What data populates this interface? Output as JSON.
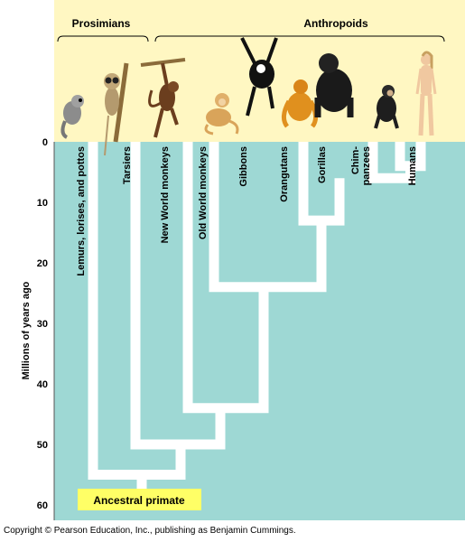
{
  "groups": {
    "prosimians": "Prosimians",
    "anthropoids": "Anthropoids"
  },
  "axis": {
    "label": "Millions of years ago",
    "ticks": [
      0,
      10,
      20,
      30,
      40,
      50,
      60
    ]
  },
  "taxa": [
    {
      "id": "lemurs",
      "label": "Lemurs, lorises, and pottos",
      "icon": "lemur-icon"
    },
    {
      "id": "tarsiers",
      "label": "Tarsiers",
      "icon": "tarsier-icon"
    },
    {
      "id": "new-world-monkeys",
      "label": "New World monkeys",
      "icon": "new-world-monkey-icon"
    },
    {
      "id": "old-world-monkeys",
      "label": "Old World monkeys",
      "icon": "old-world-monkey-icon"
    },
    {
      "id": "gibbons",
      "label": "Gibbons",
      "icon": "gibbon-icon"
    },
    {
      "id": "orangutans",
      "label": "Orangutans",
      "icon": "orangutan-icon"
    },
    {
      "id": "gorillas",
      "label": "Gorillas",
      "icon": "gorilla-icon"
    },
    {
      "id": "chimpanzees",
      "label": "Chim-\npanzees",
      "icon": "chimpanzee-icon"
    },
    {
      "id": "humans",
      "label": "Humans",
      "icon": "human-icon"
    }
  ],
  "divergences_mya": [
    {
      "between": "humans / chimpanzees",
      "mya": 4
    },
    {
      "between": "gorillas / (chimpanzees + humans)",
      "mya": 6
    },
    {
      "between": "orangutans / African apes",
      "mya": 13
    },
    {
      "between": "gibbons / great apes",
      "mya": 24
    },
    {
      "between": "Old World monkeys / apes",
      "mya": 44
    },
    {
      "between": "New World monkeys / Old World anthropoids",
      "mya": 50
    },
    {
      "between": "tarsiers / anthropoids",
      "mya": 55
    },
    {
      "between": "lemurs / rest",
      "mya": 57
    }
  ],
  "root_label": "Ancestral primate",
  "colors": {
    "background": "#9ed8d4",
    "header": "#fff7c2",
    "branch": "#ffffff",
    "root_box": "#ffff66"
  },
  "copyright": "Copyright © Pearson Education, Inc., publishing as Benjamin Cummings."
}
